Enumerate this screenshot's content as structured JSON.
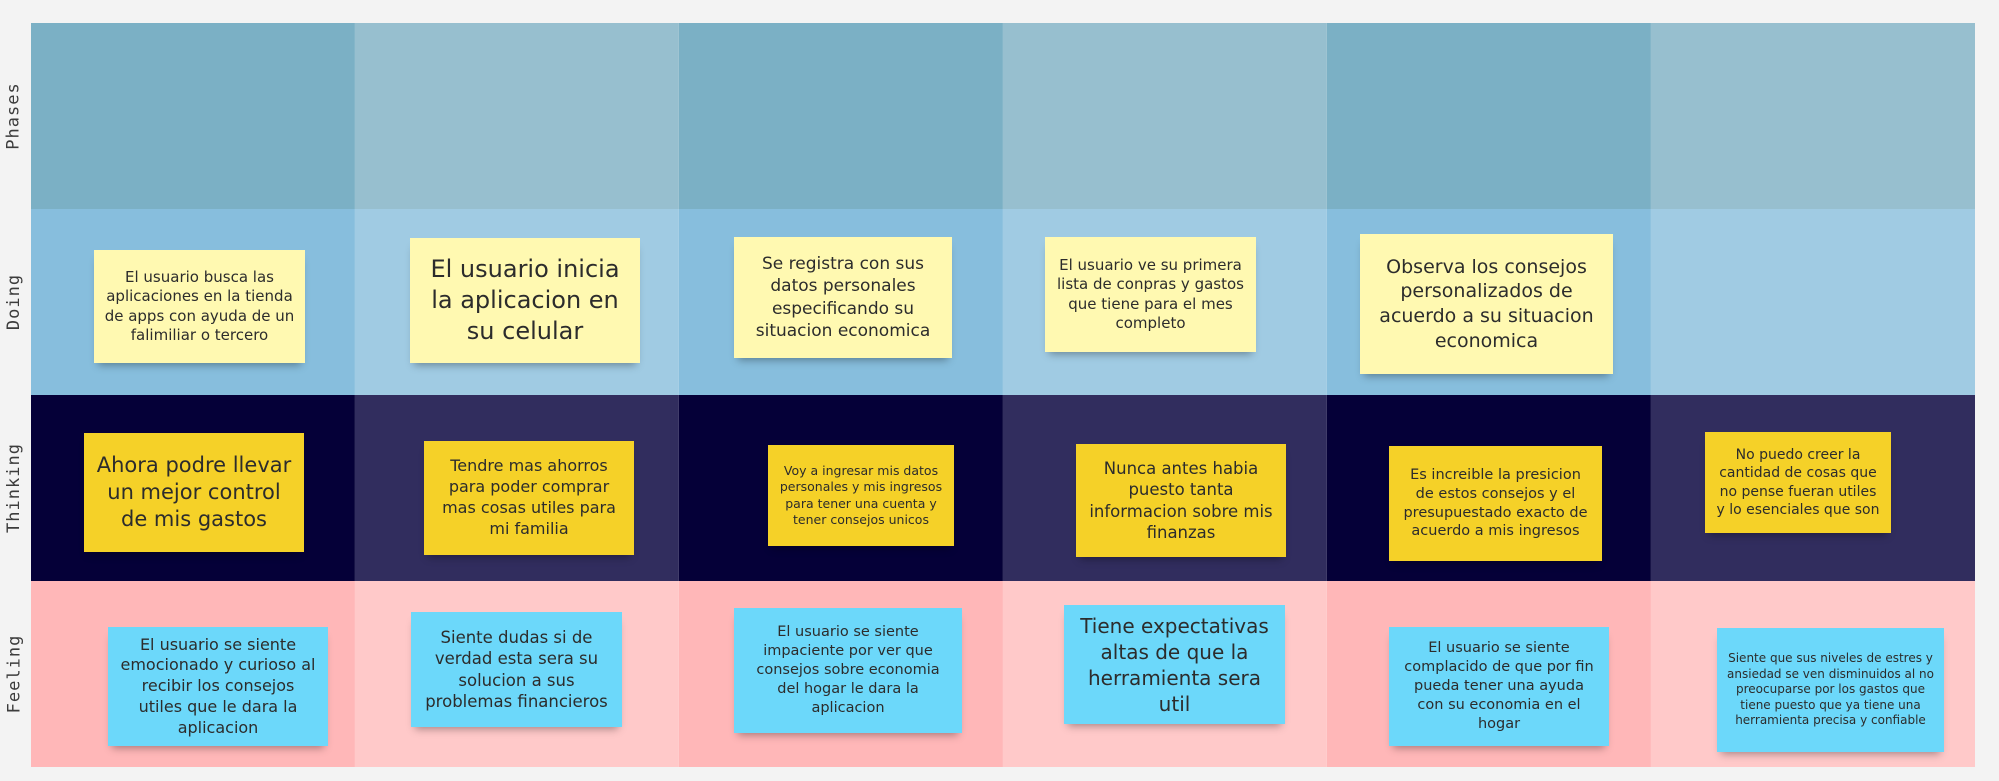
{
  "rows": {
    "phases": "Phases",
    "doing": "Doing",
    "thinking": "Thinking",
    "feeling": "Feeling"
  },
  "colors": {
    "phases_cell_a": "#7bb0c5",
    "phases_cell_b": "#97bfcf",
    "doing_cell_a": "#87bedd",
    "doing_cell_b": "#a0cbe3",
    "thinking_cell_a": "#050038",
    "thinking_cell_b": "#312d5e",
    "feeling_cell_a": "#ffb7b8",
    "feeling_cell_b": "#ffc9c9",
    "note_light_yellow": "#fff9b1",
    "note_yellow": "#f5d128",
    "note_blue": "#6cd8fa"
  },
  "doing": [
    "El usuario busca las aplicaciones en la tienda de apps con ayuda de un falimiliar o tercero",
    "El usuario inicia la aplicacion en su celular",
    "Se registra con sus datos personales especificando su situacion economica",
    "El usuario ve su primera lista de conpras y gastos que tiene para el mes completo",
    "Observa los consejos personalizados de acuerdo a su situacion economica"
  ],
  "thinking": [
    "Ahora podre llevar un mejor control de mis gastos",
    "Tendre mas ahorros para poder comprar mas cosas utiles para mi familia",
    "Voy a ingresar mis datos personales y mis ingresos para tener una cuenta y tener consejos unicos",
    "Nunca antes habia puesto tanta informacion sobre mis finanzas",
    "Es increible la presicion de estos consejos y el presupuestado exacto de acuerdo a mis ingresos",
    "No puedo creer la cantidad de cosas que no pense fueran utiles y lo esenciales que son"
  ],
  "feeling": [
    "El usuario se siente emocionado y curioso al recibir los consejos utiles que le dara la aplicacion",
    "Siente dudas si de verdad esta sera su solucion a sus problemas financieros",
    "El usuario se siente impaciente por ver que consejos sobre economia del hogar le dara la aplicacion",
    "Tiene expectativas altas de que la herramienta sera util",
    "El usuario se siente complacido de que por fin pueda tener una ayuda con su economia en el hogar",
    "Siente que sus niveles de estres y ansiedad se ven disminuidos al no preocuparse por los gastos que tiene puesto que ya tiene una herramienta precisa y confiable"
  ]
}
